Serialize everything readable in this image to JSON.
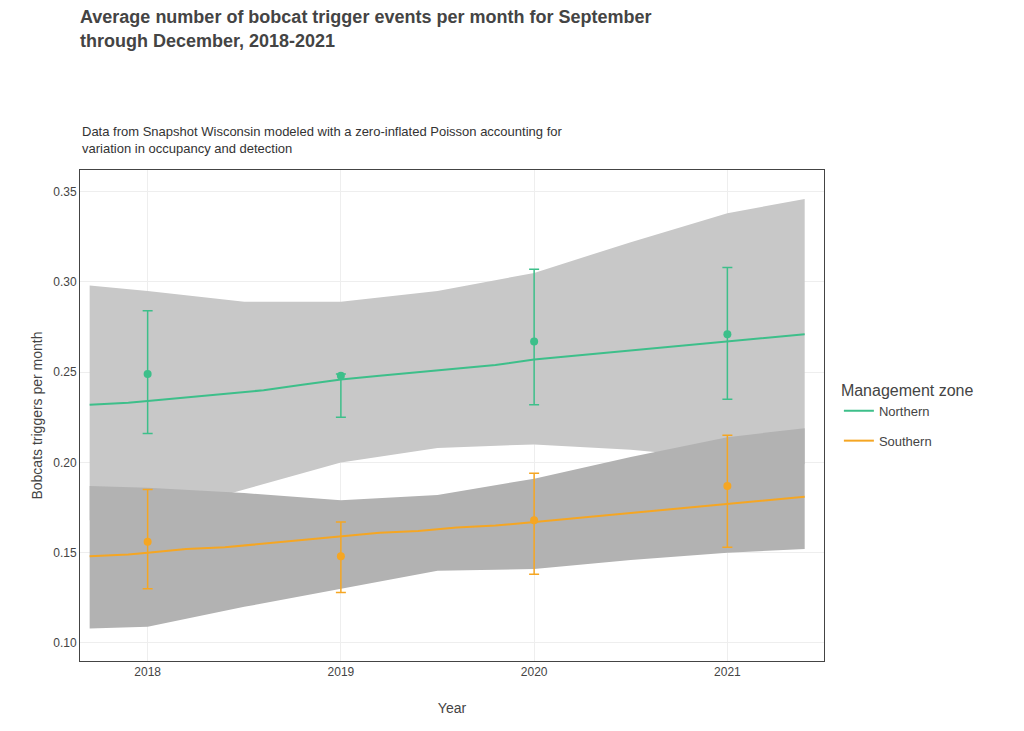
{
  "chart_data": {
    "type": "line",
    "title": "Average number of bobcat trigger events per month for September\nthrough December, 2018-2021",
    "subtitle": "Data from Snapshot Wisconsin modeled with a zero-inflated Poisson accounting for\nvariation in occupancy and detection",
    "xlabel": "Year",
    "ylabel": "Bobcats triggers per month",
    "xlim": [
      2017.65,
      2021.5
    ],
    "xticks": [
      2018,
      2019,
      2020,
      2021
    ],
    "ylim": [
      0.09,
      0.362
    ],
    "yticks": [
      {
        "value": 0.1,
        "label": "0.10"
      },
      0.15,
      {
        "value": 0.2,
        "label": "0.20"
      },
      0.25,
      {
        "value": 0.3,
        "label": "0.30"
      },
      0.35
    ],
    "grid": true,
    "legend": "right",
    "legend_title": "Management zone",
    "series": [
      {
        "name": "Northern",
        "color": "#3dbf8a",
        "x": [
          2018,
          2019,
          2020,
          2021
        ],
        "values": [
          0.249,
          0.248,
          0.267,
          0.271
        ],
        "upper": [
          0.284,
          0.249,
          0.307,
          0.308
        ],
        "lower": [
          0.216,
          0.225,
          0.232,
          0.235
        ],
        "line_x": [
          2017.7,
          2017.9,
          2018.0,
          2018.2,
          2018.4,
          2018.6,
          2018.8,
          2019.0,
          2019.2,
          2019.4,
          2019.6,
          2019.8,
          2020.0,
          2020.2,
          2020.4,
          2020.6,
          2020.8,
          2021.0,
          2021.2,
          2021.4
        ],
        "line_y": [
          0.232,
          0.233,
          0.234,
          0.236,
          0.238,
          0.24,
          0.243,
          0.246,
          0.248,
          0.25,
          0.252,
          0.254,
          0.257,
          0.259,
          0.261,
          0.263,
          0.265,
          0.267,
          0.269,
          0.271
        ],
        "band_x": [
          2017.7,
          2018.0,
          2018.5,
          2019.0,
          2019.5,
          2020.0,
          2020.5,
          2021.0,
          2021.4
        ],
        "band_upper": [
          0.298,
          0.295,
          0.289,
          0.289,
          0.295,
          0.305,
          0.322,
          0.338,
          0.346
        ],
        "band_lower": [
          0.168,
          0.17,
          0.185,
          0.2,
          0.208,
          0.21,
          0.207,
          0.202,
          0.199
        ],
        "band_color": "#c8c8c8"
      },
      {
        "name": "Southern",
        "color": "#f5a623",
        "x": [
          2018,
          2019,
          2020,
          2021
        ],
        "values": [
          0.156,
          0.148,
          0.168,
          0.187
        ],
        "upper": [
          0.185,
          0.167,
          0.194,
          0.215
        ],
        "lower": [
          0.13,
          0.128,
          0.138,
          0.153
        ],
        "line_x": [
          2017.7,
          2017.9,
          2018.0,
          2018.2,
          2018.4,
          2018.6,
          2018.8,
          2019.0,
          2019.2,
          2019.4,
          2019.6,
          2019.8,
          2020.0,
          2020.2,
          2020.4,
          2020.6,
          2020.8,
          2021.0,
          2021.2,
          2021.4
        ],
        "line_y": [
          0.148,
          0.149,
          0.15,
          0.152,
          0.153,
          0.155,
          0.157,
          0.159,
          0.161,
          0.162,
          0.164,
          0.165,
          0.167,
          0.169,
          0.171,
          0.173,
          0.175,
          0.177,
          0.179,
          0.181
        ],
        "band_x": [
          2017.7,
          2018.0,
          2018.5,
          2019.0,
          2019.5,
          2020.0,
          2020.5,
          2021.0,
          2021.4
        ],
        "band_upper": [
          0.187,
          0.186,
          0.183,
          0.179,
          0.182,
          0.191,
          0.203,
          0.214,
          0.219
        ],
        "band_lower": [
          0.108,
          0.109,
          0.12,
          0.13,
          0.14,
          0.141,
          0.146,
          0.15,
          0.152
        ],
        "band_color": "#b2b2b2"
      }
    ]
  }
}
